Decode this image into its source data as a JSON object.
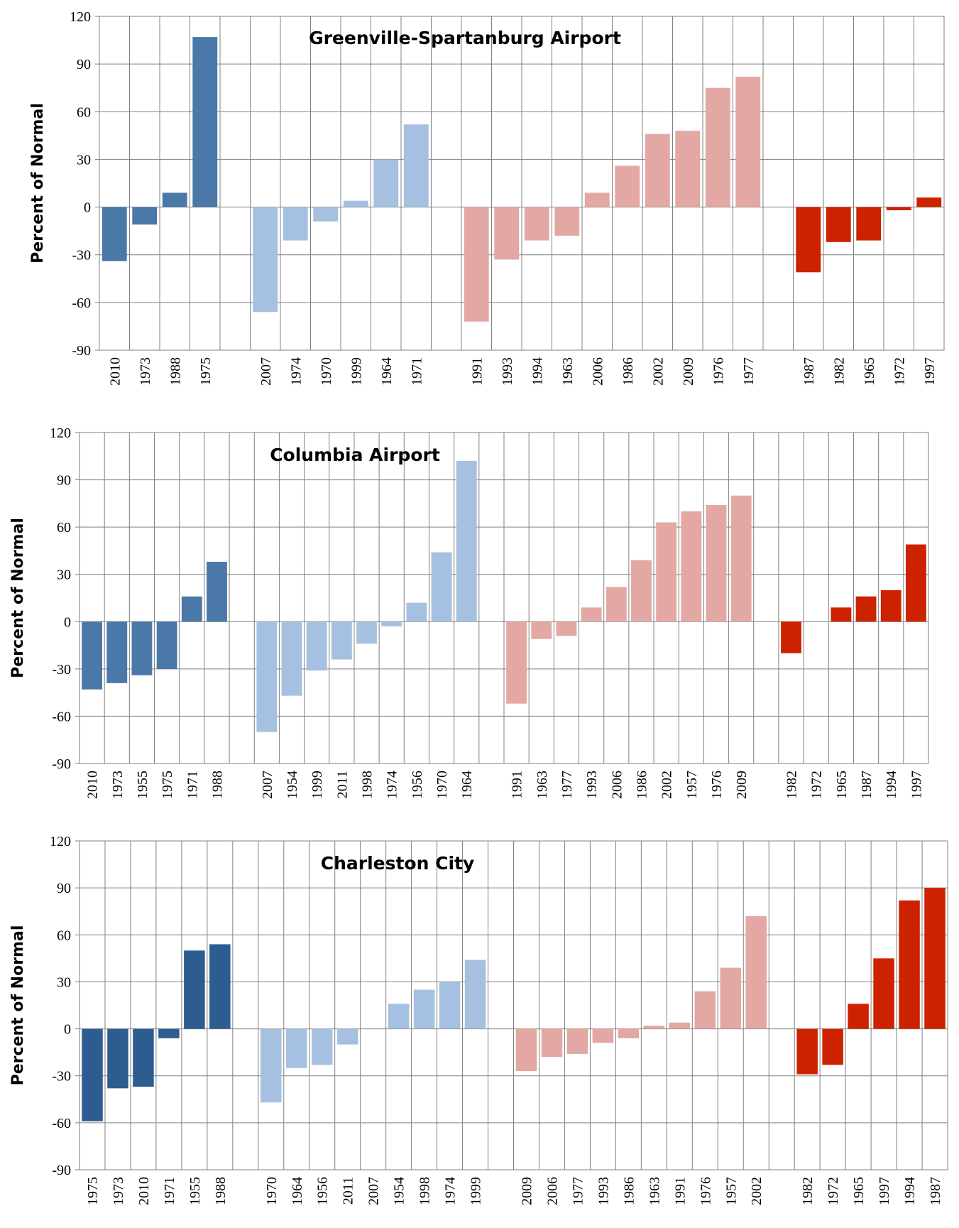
{
  "chart_data": [
    {
      "type": "bar",
      "title": "Greenville-Spartanburg  Airport",
      "ylabel": "Percent of Normal",
      "ylim": [
        -90,
        120
      ],
      "yticks": [
        -90,
        -60,
        -30,
        0,
        30,
        60,
        90,
        120
      ],
      "grid": true,
      "groups": [
        {
          "color": "#4a78a8",
          "categories": [
            "2010",
            "1973",
            "1988",
            "1975"
          ],
          "values": [
            -34,
            -11,
            9,
            107
          ]
        },
        {
          "color": "#a5c0e0",
          "categories": [
            "2007",
            "1974",
            "1970",
            "1999",
            "1964",
            "1971"
          ],
          "values": [
            -66,
            -21,
            -9,
            4,
            30,
            52
          ]
        },
        {
          "color": "#e3a8a4",
          "categories": [
            "1991",
            "1993",
            "1994",
            "1963",
            "2006",
            "1986",
            "2002",
            "2009",
            "1976",
            "1977"
          ],
          "values": [
            -72,
            -33,
            -21,
            -18,
            9,
            26,
            46,
            48,
            75,
            82
          ]
        },
        {
          "color": "#cc2200",
          "categories": [
            "1987",
            "1982",
            "1965",
            "1972",
            "1997"
          ],
          "values": [
            -41,
            -22,
            -21,
            -2,
            6
          ]
        }
      ]
    },
    {
      "type": "bar",
      "title": "Columbia Airport",
      "ylabel": "Percent of Normal",
      "ylim": [
        -90,
        120
      ],
      "yticks": [
        -90,
        -60,
        -30,
        0,
        30,
        60,
        90,
        120
      ],
      "grid": true,
      "groups": [
        {
          "color": "#4a78a8",
          "categories": [
            "2010",
            "1973",
            "1955",
            "1975",
            "1971",
            "1988"
          ],
          "values": [
            -43,
            -39,
            -34,
            -30,
            16,
            38
          ]
        },
        {
          "color": "#a5c0e0",
          "categories": [
            "2007",
            "1954",
            "1999",
            "2011",
            "1998",
            "1974",
            "1956",
            "1970",
            "1964"
          ],
          "values": [
            -70,
            -47,
            -31,
            -24,
            -14,
            -3,
            12,
            44,
            102
          ]
        },
        {
          "color": "#e3a8a4",
          "categories": [
            "1991",
            "1963",
            "1977",
            "1993",
            "2006",
            "1986",
            "2002",
            "1957",
            "1976",
            "2009"
          ],
          "values": [
            -52,
            -11,
            -9,
            9,
            22,
            39,
            63,
            70,
            74,
            80
          ]
        },
        {
          "color": "#cc2200",
          "categories": [
            "1982",
            "1972",
            "1965",
            "1987",
            "1994",
            "1997"
          ],
          "values": [
            -20,
            0,
            9,
            16,
            20,
            49
          ]
        }
      ]
    },
    {
      "type": "bar",
      "title": "Charleston City",
      "ylabel": "Percent of Normal",
      "ylim": [
        -90,
        120
      ],
      "yticks": [
        -90,
        -60,
        -30,
        0,
        30,
        60,
        90,
        120
      ],
      "grid": true,
      "groups": [
        {
          "color": "#2d5c90",
          "categories": [
            "1975",
            "1973",
            "2010",
            "1971",
            "1955",
            "1988"
          ],
          "values": [
            -59,
            -38,
            -37,
            -6,
            50,
            54
          ]
        },
        {
          "color": "#a5c0e0",
          "categories": [
            "1970",
            "1964",
            "1956",
            "2011",
            "2007",
            "1954",
            "1998",
            "1974",
            "1999"
          ],
          "values": [
            -47,
            -25,
            -23,
            -10,
            0,
            16,
            25,
            30,
            44
          ]
        },
        {
          "color": "#e3a8a4",
          "categories": [
            "2009",
            "2006",
            "1977",
            "1993",
            "1986",
            "1963",
            "1991",
            "1976",
            "1957",
            "2002"
          ],
          "values": [
            -27,
            -18,
            -16,
            -9,
            -6,
            2,
            4,
            24,
            39,
            72
          ]
        },
        {
          "color": "#cc2200",
          "categories": [
            "1982",
            "1972",
            "1965",
            "1997",
            "1994",
            "1987"
          ],
          "values": [
            -29,
            -23,
            16,
            45,
            82,
            90
          ]
        }
      ]
    }
  ]
}
